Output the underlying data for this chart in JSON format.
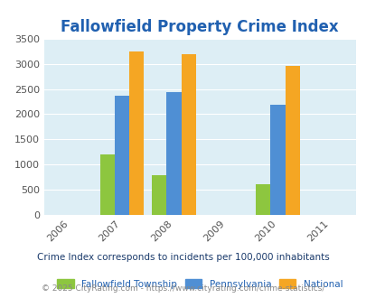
{
  "title": "Fallowfield Property Crime Index",
  "title_color": "#2060b0",
  "years": [
    2006,
    2007,
    2008,
    2009,
    2010,
    2011
  ],
  "data_years": [
    2007,
    2008,
    2010
  ],
  "fallowfield": [
    1190,
    790,
    600
  ],
  "pennsylvania": [
    2370,
    2430,
    2190
  ],
  "national": [
    3250,
    3200,
    2950
  ],
  "bar_colors": {
    "fallowfield": "#8dc63f",
    "pennsylvania": "#4f8fd4",
    "national": "#f5a623"
  },
  "ylim": [
    0,
    3500
  ],
  "yticks": [
    0,
    500,
    1000,
    1500,
    2000,
    2500,
    3000,
    3500
  ],
  "bg_color": "#ddeef5",
  "legend_labels": [
    "Fallowfield Township",
    "Pennsylvania",
    "National"
  ],
  "note": "Crime Index corresponds to incidents per 100,000 inhabitants",
  "footer": "© 2025 CityRating.com - https://www.cityrating.com/crime-statistics/",
  "note_color": "#1a3a6b",
  "footer_color": "#888888",
  "legend_label_color": "#2060b0",
  "bar_width": 0.28
}
